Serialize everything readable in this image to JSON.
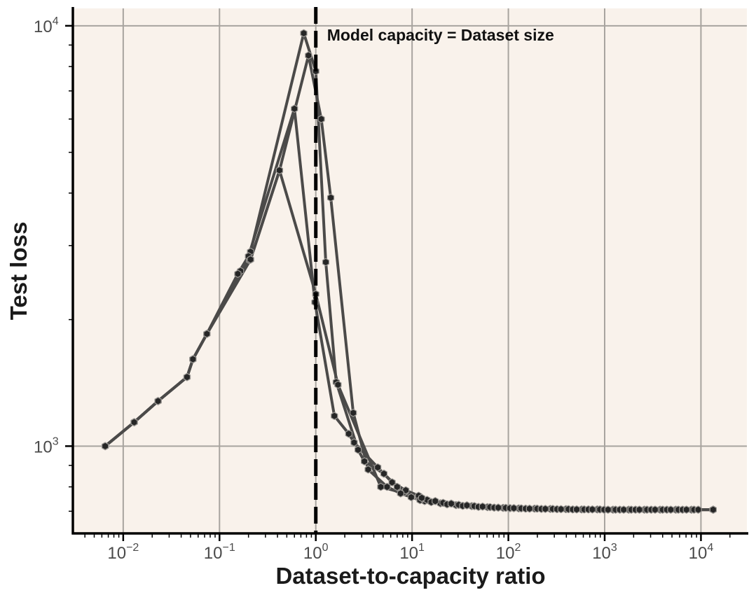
{
  "chart_data": {
    "type": "line",
    "xlabel": "Dataset-to-capacity ratio",
    "ylabel": "Test loss",
    "x_scale": "log",
    "y_scale": "log",
    "xlim": [
      0.003,
      30000
    ],
    "ylim": [
      620,
      11000
    ],
    "x_ticks": [
      {
        "value": 0.01,
        "base": "10",
        "exp": "−2"
      },
      {
        "value": 0.1,
        "base": "10",
        "exp": "−1"
      },
      {
        "value": 1,
        "base": "10",
        "exp": "0"
      },
      {
        "value": 10,
        "base": "10",
        "exp": "1"
      },
      {
        "value": 100,
        "base": "10",
        "exp": "2"
      },
      {
        "value": 1000,
        "base": "10",
        "exp": "3"
      },
      {
        "value": 10000,
        "base": "10",
        "exp": "4"
      }
    ],
    "y_ticks": [
      {
        "value": 1000,
        "base": "10",
        "exp": "3"
      },
      {
        "value": 10000,
        "base": "10",
        "exp": "4"
      }
    ],
    "grid": true,
    "background_color": "#f9f2eb",
    "grid_color": "#a8a49f",
    "line_color": "#4b4a49",
    "marker_color": "#262626",
    "annotation": {
      "text": "Model capacity = Dataset size",
      "x": 1
    },
    "series": [
      {
        "x": [
          0.0065,
          0.013,
          0.023,
          0.046,
          0.053,
          0.074,
          0.165,
          0.205,
          0.21,
          0.75,
          1.0,
          1.27,
          1.63,
          2.75,
          3.2,
          5.1,
          7.0,
          8.4,
          11.6,
          13.5,
          19.7,
          28.6,
          41.6,
          60.6,
          88.2,
          128,
          187,
          272,
          396,
          576,
          838,
          1220,
          1775,
          2583,
          3760,
          5472,
          7963,
          13400
        ],
        "y": [
          1000,
          1140,
          1280,
          1460,
          1610,
          1850,
          2610,
          2770,
          2900,
          9600,
          7800,
          2740,
          1420,
          980,
          920,
          860,
          800,
          778,
          756,
          740,
          731,
          724,
          720,
          716,
          713,
          711,
          710,
          709,
          708,
          707,
          707,
          706,
          706,
          706,
          706,
          706,
          706,
          706
        ]
      },
      {
        "x": [
          0.0065,
          0.013,
          0.023,
          0.046,
          0.053,
          0.074,
          0.155,
          0.2,
          0.6,
          0.98,
          1.56,
          2.2,
          2.5,
          4.4,
          6.2,
          8.6,
          11.7,
          14.3,
          21.0,
          30.5,
          44.3,
          64.5,
          94,
          136,
          199,
          289,
          421,
          613,
          892,
          1298,
          1889,
          2750,
          4000,
          5823,
          8475,
          13400
        ],
        "y": [
          1000,
          1140,
          1280,
          1460,
          1610,
          1850,
          2570,
          2830,
          6350,
          2200,
          1180,
          1070,
          1020,
          890,
          820,
          785,
          762,
          745,
          733,
          725,
          720,
          716,
          713,
          711,
          710,
          709,
          708,
          707,
          707,
          706,
          706,
          706,
          706,
          706,
          706,
          706
        ]
      },
      {
        "x": [
          0.0065,
          0.013,
          0.023,
          0.046,
          0.053,
          0.074,
          0.21,
          0.42,
          0.84,
          1.14,
          1.43,
          2.45,
          3.5,
          5.5,
          7.6,
          9.8,
          12.1,
          15.8,
          23.1,
          33.6,
          48.9,
          71.2,
          104,
          151,
          220,
          320,
          466,
          678,
          987,
          1436,
          2090,
          3041,
          4425,
          6440,
          9371,
          13400
        ],
        "y": [
          1000,
          1140,
          1280,
          1460,
          1610,
          1850,
          2780,
          4530,
          8500,
          6000,
          3900,
          1200,
          880,
          800,
          772,
          756,
          744,
          736,
          727,
          721,
          717,
          714,
          712,
          710,
          709,
          708,
          707,
          707,
          706,
          706,
          706,
          706,
          706,
          706,
          706,
          706
        ]
      },
      {
        "x": [
          0.0065,
          0.013,
          0.023,
          0.046,
          0.053,
          0.074,
          0.21,
          0.42,
          1.0,
          1.7,
          4.73,
          12.6,
          17.4,
          25.5,
          37.1,
          54.0,
          78.5,
          114,
          166,
          242,
          352,
          512,
          745,
          1084,
          1577,
          2295,
          3340,
          4860,
          7072,
          13400
        ],
        "y": [
          1000,
          1140,
          1280,
          1460,
          1610,
          1850,
          2780,
          4530,
          2300,
          1400,
          800,
          753,
          740,
          730,
          723,
          718,
          714,
          712,
          710,
          709,
          708,
          707,
          707,
          706,
          706,
          706,
          706,
          706,
          706,
          706
        ]
      }
    ]
  }
}
